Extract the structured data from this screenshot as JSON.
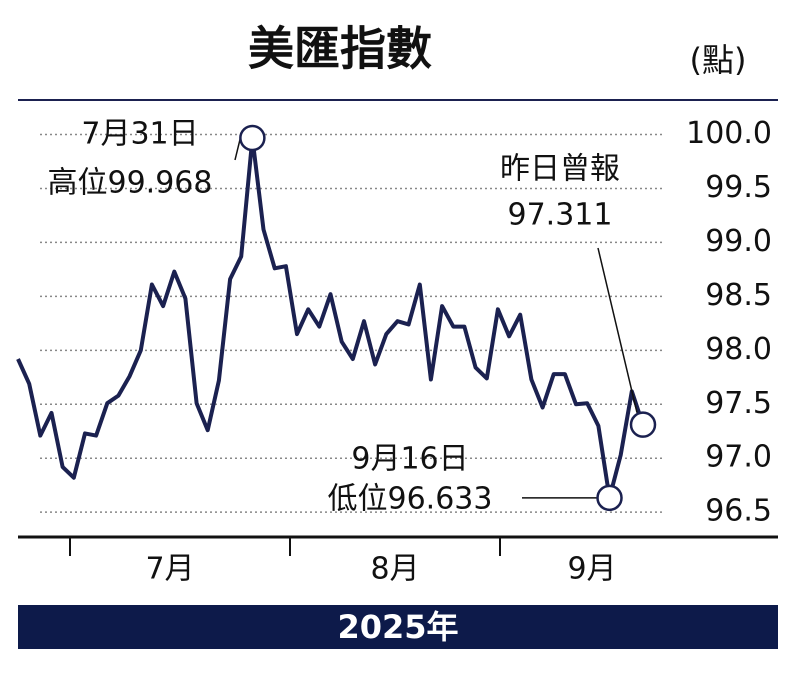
{
  "chart_data": {
    "type": "line",
    "title": "美匯指數",
    "unit_label": "(點)",
    "footer": "2025年",
    "months": [
      "7月",
      "8月",
      "9月"
    ],
    "categories": [
      null,
      null,
      null,
      null,
      null,
      null,
      null,
      null,
      null,
      null,
      null,
      null,
      null,
      null,
      null,
      null,
      null,
      null,
      null,
      null,
      null,
      null,
      null,
      null,
      null,
      null,
      null,
      null,
      null,
      null,
      null,
      null,
      null,
      null,
      null,
      null,
      null,
      null,
      null,
      null,
      null,
      null,
      null,
      null,
      null,
      null,
      null,
      null,
      null,
      null,
      null,
      null,
      null,
      null,
      null,
      null,
      null
    ],
    "values": [
      97.92,
      97.69,
      97.21,
      97.42,
      96.92,
      96.82,
      97.23,
      97.21,
      97.51,
      97.58,
      97.76,
      98.0,
      98.61,
      98.41,
      98.73,
      98.48,
      97.51,
      97.26,
      97.72,
      98.66,
      98.87,
      99.968,
      99.12,
      98.76,
      98.78,
      98.15,
      98.38,
      98.22,
      98.52,
      98.08,
      97.92,
      98.27,
      97.87,
      98.15,
      98.27,
      98.24,
      98.61,
      97.73,
      98.41,
      98.22,
      98.22,
      97.84,
      97.74,
      98.38,
      98.13,
      98.33,
      97.73,
      97.47,
      97.78,
      97.78,
      97.5,
      97.51,
      97.3,
      96.633,
      97.03,
      97.62,
      97.311
    ],
    "color": "#1b2150",
    "ylim": [
      96.27,
      100.32
    ],
    "yticks": [
      {
        "value": 96.5,
        "label": "96.5"
      },
      {
        "value": 97,
        "label": "97.0"
      },
      {
        "value": 97.5,
        "label": "97.5"
      },
      {
        "value": 98,
        "label": "98.0"
      },
      {
        "value": 98.5,
        "label": "98.5"
      },
      {
        "value": 99,
        "label": "99.0"
      },
      {
        "value": 99.5,
        "label": "99.5"
      },
      {
        "value": 100,
        "label": "100.0"
      }
    ],
    "grid": true,
    "annotations": {
      "high": [
        "7月31日",
        "高位99.968"
      ],
      "low": [
        "9月16日",
        "低位96.633"
      ],
      "last": [
        "昨日曾報",
        "97.311"
      ]
    }
  }
}
